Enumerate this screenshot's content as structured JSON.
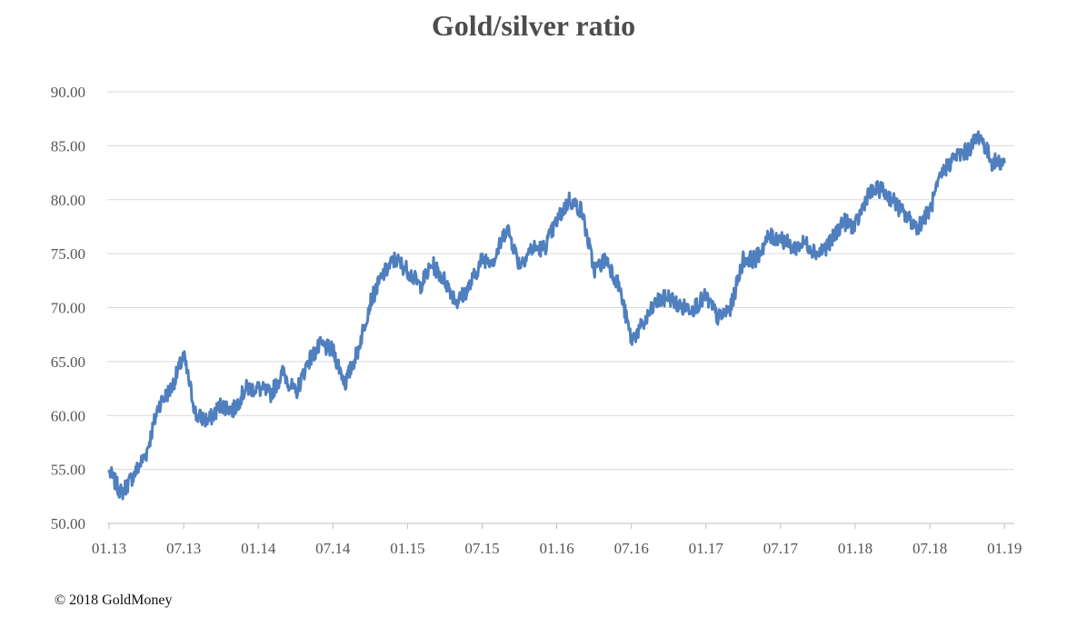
{
  "chart_data": {
    "type": "line",
    "title": "Gold/silver ratio",
    "xlabel": "",
    "ylabel": "",
    "ylim": [
      50,
      90
    ],
    "y_ticks": [
      "50.00",
      "55.00",
      "60.00",
      "65.00",
      "70.00",
      "75.00",
      "80.00",
      "85.00",
      "90.00"
    ],
    "x_ticks": [
      "01.13",
      "07.13",
      "01.14",
      "07.14",
      "01.15",
      "07.15",
      "01.16",
      "07.16",
      "01.17",
      "07.17",
      "01.18",
      "07.18",
      "01.19"
    ],
    "grid": true,
    "legend": "none",
    "line_color": "#4f7fbe",
    "series": [
      {
        "x": [
          "2013-01",
          "2013-02",
          "2013-03",
          "2013-04",
          "2013-05",
          "2013-06",
          "2013-07",
          "2013-08",
          "2013-09",
          "2013-10",
          "2013-11",
          "2013-12",
          "2014-01",
          "2014-02",
          "2014-03",
          "2014-04",
          "2014-05",
          "2014-06",
          "2014-07",
          "2014-08",
          "2014-09",
          "2014-10",
          "2014-11",
          "2014-12",
          "2015-01",
          "2015-02",
          "2015-03",
          "2015-04",
          "2015-05",
          "2015-06",
          "2015-07",
          "2015-08",
          "2015-09",
          "2015-10",
          "2015-11",
          "2015-12",
          "2016-01",
          "2016-02",
          "2016-03",
          "2016-04",
          "2016-05",
          "2016-06",
          "2016-07",
          "2016-08",
          "2016-09",
          "2016-10",
          "2016-11",
          "2016-12",
          "2017-01",
          "2017-02",
          "2017-03",
          "2017-04",
          "2017-05",
          "2017-06",
          "2017-07",
          "2017-08",
          "2017-09",
          "2017-10",
          "2017-11",
          "2017-12",
          "2018-01",
          "2018-02",
          "2018-03",
          "2018-04",
          "2018-05",
          "2018-06",
          "2018-07",
          "2018-08",
          "2018-09",
          "2018-10",
          "2018-11",
          "2018-12",
          "2019-01"
        ],
        "values": [
          54.8,
          52.8,
          54.5,
          56.5,
          61.0,
          62.5,
          65.5,
          60.0,
          59.5,
          61.0,
          60.5,
          62.5,
          62.5,
          62.0,
          64.0,
          62.0,
          65.0,
          66.5,
          66.0,
          63.0,
          66.0,
          70.5,
          73.0,
          74.5,
          73.5,
          72.0,
          74.0,
          72.5,
          70.5,
          72.0,
          74.5,
          74.5,
          77.5,
          74.0,
          75.5,
          75.5,
          78.0,
          80.0,
          79.0,
          73.5,
          74.5,
          72.0,
          67.0,
          68.5,
          70.5,
          71.0,
          70.0,
          70.0,
          71.0,
          69.0,
          70.0,
          74.5,
          74.5,
          76.5,
          76.5,
          75.5,
          76.0,
          75.0,
          76.0,
          78.0,
          77.5,
          80.5,
          81.0,
          80.0,
          78.5,
          77.5,
          79.0,
          82.5,
          84.0,
          84.5,
          86.0,
          83.5,
          83.5
        ]
      }
    ]
  },
  "footer": {
    "copyright": "© 2018 GoldMoney"
  }
}
